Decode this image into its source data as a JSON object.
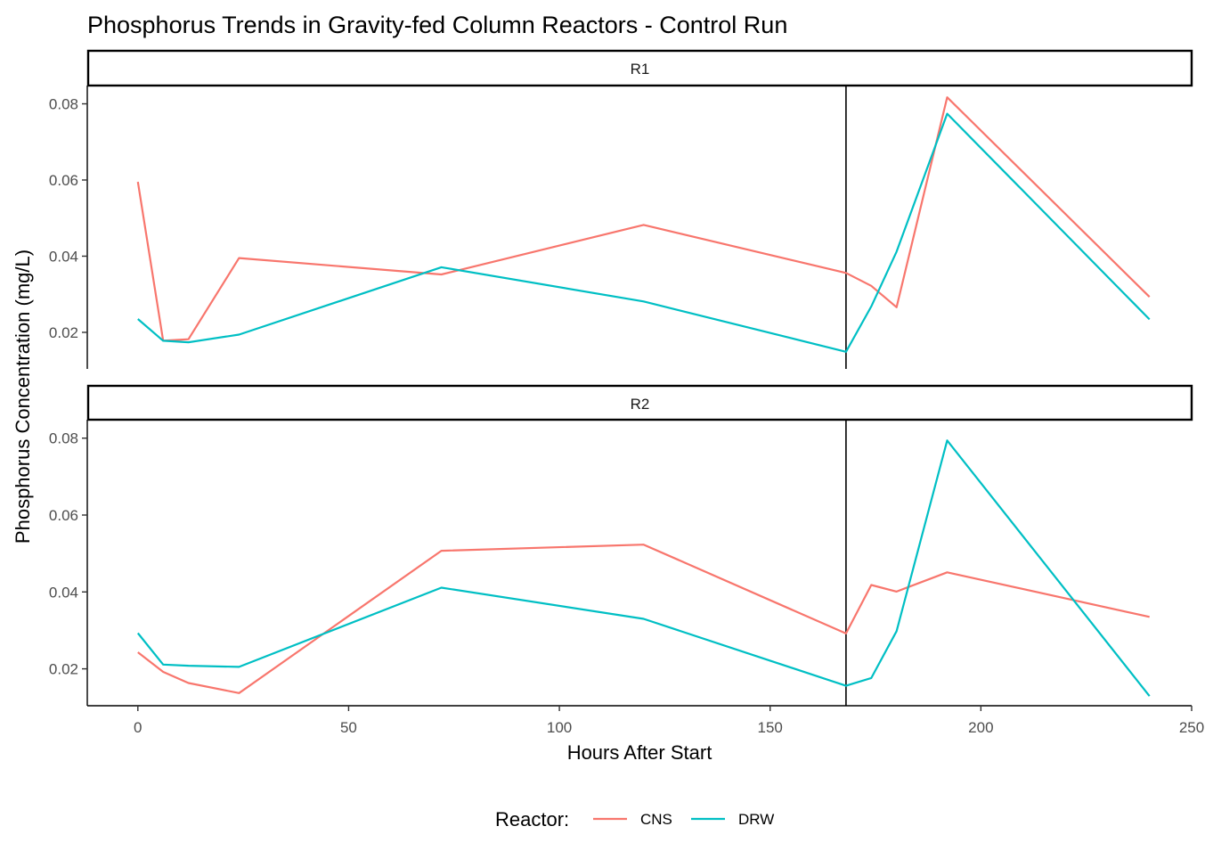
{
  "chart_data": {
    "type": "line",
    "title": "Phosphorus Trends in Gravity-fed Column Reactors - Control Run",
    "xlabel": "Hours After Start",
    "ylabel": "Phosphorus Concentration (mg/L)",
    "xlim": [
      -12,
      250
    ],
    "x_ticks": [
      0,
      50,
      100,
      150,
      200,
      250
    ],
    "x_tick_labels": [
      "0",
      "50",
      "100",
      "150",
      "200",
      "250"
    ],
    "ylim": [
      0.0104,
      0.0848
    ],
    "y_ticks": [
      0.02,
      0.04,
      0.06,
      0.08
    ],
    "y_tick_labels": [
      "0.02",
      "0.04",
      "0.06",
      "0.08"
    ],
    "vline_x": 168,
    "grid": false,
    "legend": {
      "title": "Reactor:",
      "position": "bottom",
      "entries": [
        "CNS",
        "DRW"
      ]
    },
    "colors": {
      "CNS": "#F8766D",
      "DRW": "#00BFC4"
    },
    "panels": [
      {
        "label": "R1",
        "series": [
          {
            "name": "CNS",
            "x": [
              0,
              6,
              12,
              24,
              72,
              120,
              168,
              174,
              180,
              192,
              240
            ],
            "y": [
              0.0595,
              0.0178,
              0.0182,
              0.0395,
              0.0352,
              0.0482,
              0.0356,
              0.0322,
              0.0266,
              0.0817,
              0.0293
            ]
          },
          {
            "name": "DRW",
            "x": [
              0,
              6,
              12,
              24,
              72,
              120,
              168,
              174,
              180,
              192,
              240
            ],
            "y": [
              0.0235,
              0.0178,
              0.0174,
              0.0194,
              0.0371,
              0.0281,
              0.0149,
              0.0268,
              0.0412,
              0.0774,
              0.0234
            ]
          }
        ]
      },
      {
        "label": "R2",
        "series": [
          {
            "name": "CNS",
            "x": [
              0,
              6,
              12,
              24,
              72,
              120,
              168,
              174,
              180,
              192,
              240
            ],
            "y": [
              0.0243,
              0.0192,
              0.0163,
              0.0137,
              0.0507,
              0.0523,
              0.0292,
              0.0418,
              0.0401,
              0.0451,
              0.0335
            ]
          },
          {
            "name": "DRW",
            "x": [
              0,
              6,
              12,
              24,
              72,
              120,
              168,
              174,
              180,
              192,
              240
            ],
            "y": [
              0.0293,
              0.0211,
              0.0208,
              0.0205,
              0.0411,
              0.033,
              0.0156,
              0.0176,
              0.0298,
              0.0794,
              0.0129
            ]
          }
        ]
      }
    ]
  }
}
